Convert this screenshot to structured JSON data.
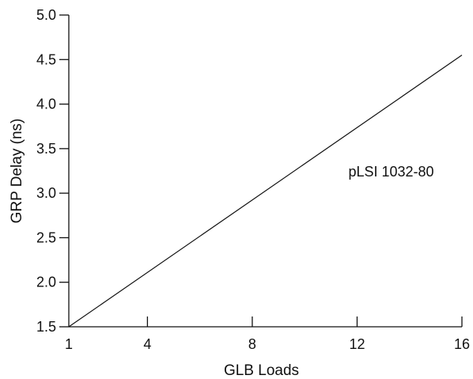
{
  "chart_data": {
    "type": "line",
    "title": "",
    "xlabel": "GLB Loads",
    "ylabel": "GRP Delay (ns)",
    "xlim": [
      1,
      16
    ],
    "ylim": [
      1.5,
      5.0
    ],
    "x_ticks": [
      1,
      4,
      8,
      12,
      16
    ],
    "x_tick_labels": [
      "1",
      "4",
      "8",
      "12",
      "16"
    ],
    "y_ticks": [
      1.5,
      2.0,
      2.5,
      3.0,
      3.5,
      4.0,
      4.5,
      5.0
    ],
    "y_tick_labels": [
      "1.5",
      "2.0",
      "2.5",
      "3.0",
      "3.5",
      "4.0",
      "4.5",
      "5.0"
    ],
    "grid": false,
    "series": [
      {
        "x": [
          1,
          16
        ],
        "values": [
          1.5,
          4.55
        ]
      }
    ],
    "annotations": [
      {
        "text": "pLSI 1032-80",
        "x": 13.3,
        "y": 3.19
      }
    ],
    "colors": {
      "ink": "#111111",
      "background": "#ffffff"
    }
  }
}
